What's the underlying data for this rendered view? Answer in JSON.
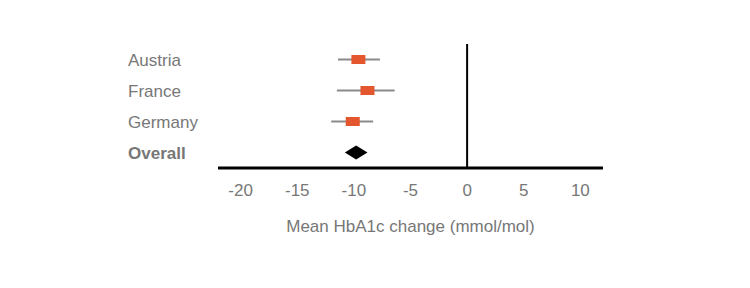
{
  "chart_data": {
    "type": "forest",
    "categories": [
      "Austria",
      "France",
      "Germany",
      "Overall"
    ],
    "values": [
      -9.6,
      -8.8,
      -10.1,
      -9.8
    ],
    "lower": [
      -11.4,
      -11.5,
      -12.0,
      -10.8
    ],
    "upper": [
      -7.7,
      -6.4,
      -8.3,
      -8.8
    ],
    "colors": [
      "#e4572e",
      "#e4572e",
      "#e4572e",
      "#000000"
    ],
    "xlabel": "Mean HbA1c change (mmol/mol)",
    "xlim": [
      -22,
      12
    ],
    "xticks": [
      -20,
      -15,
      -10,
      -5,
      0,
      5,
      10
    ],
    "reference_x": 0
  }
}
